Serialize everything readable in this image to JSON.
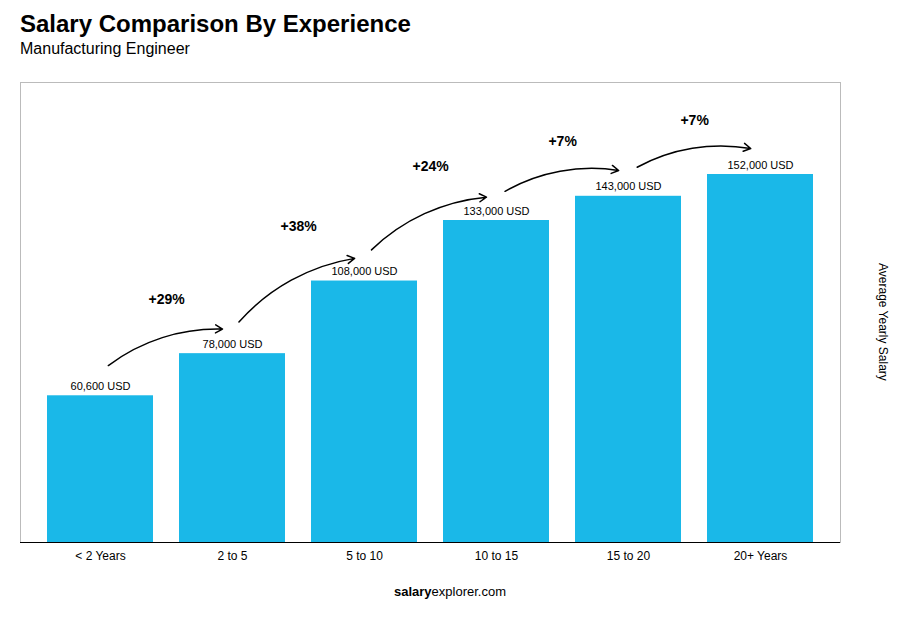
{
  "chart_data": {
    "type": "bar",
    "title": "Salary Comparison By Experience",
    "subtitle": "Manufacturing Engineer",
    "categories": [
      "< 2 Years",
      "2 to 5",
      "5 to 10",
      "10 to 15",
      "15 to 20",
      "20+ Years"
    ],
    "values": [
      60600,
      78000,
      108000,
      133000,
      143000,
      152000
    ],
    "value_labels": [
      "60,600 USD",
      "78,000 USD",
      "108,000 USD",
      "133,000 USD",
      "143,000 USD",
      "152,000 USD"
    ],
    "data_labels": true,
    "annotations": [
      "+29%",
      "+38%",
      "+24%",
      "+7%",
      "+7%"
    ],
    "color": "#1ab8e8",
    "ylabel": "Average Yearly Salary",
    "ylim": [
      0,
      190000
    ],
    "tick_labels": "x",
    "grid": false,
    "footer": [
      "salary",
      "explorer.com"
    ]
  }
}
